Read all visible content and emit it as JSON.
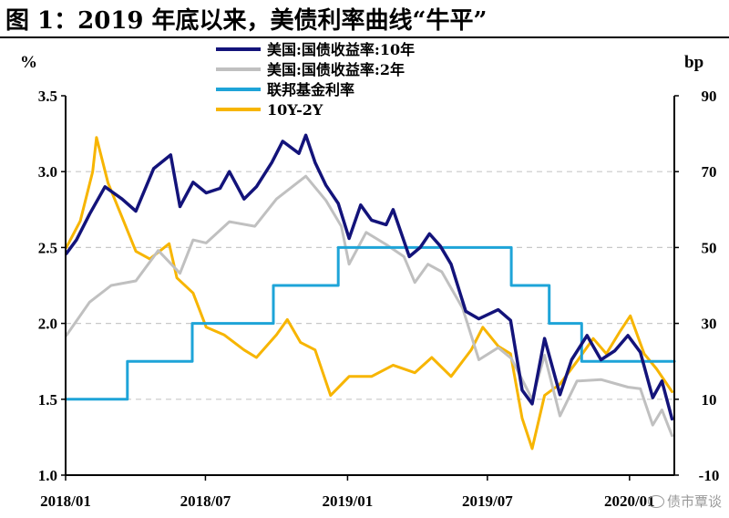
{
  "title": "图 1：2019 年底以来，美债利率曲线“牛平”",
  "watermark": "债市覃谈",
  "chart_data": {
    "type": "line",
    "left_axis": {
      "unit": "%",
      "ylim": [
        1.0,
        3.5
      ],
      "ticks": [
        "1.0",
        "1.5",
        "2.0",
        "2.5",
        "3.0",
        "3.5"
      ]
    },
    "right_axis": {
      "unit": "bp",
      "ylim": [
        -10,
        90
      ],
      "ticks": [
        "-10",
        "10",
        "30",
        "50",
        "70",
        "90"
      ]
    },
    "x_ticks": [
      "2018/01",
      "2018/07",
      "2019/01",
      "2019/07",
      "2020/01"
    ],
    "x_range": [
      "2018-01-01",
      "2020-02-28"
    ],
    "grid": "horizontal-dashed",
    "legend_position": "top-left",
    "series": [
      {
        "name": "美国:国债收益率:10年",
        "axis": "left",
        "color": "#13137a",
        "step": false,
        "points": [
          [
            "2018-01-02",
            2.46
          ],
          [
            "2018-01-15",
            2.55
          ],
          [
            "2018-02-01",
            2.72
          ],
          [
            "2018-02-21",
            2.9
          ],
          [
            "2018-03-15",
            2.82
          ],
          [
            "2018-04-02",
            2.74
          ],
          [
            "2018-04-25",
            3.02
          ],
          [
            "2018-05-17",
            3.11
          ],
          [
            "2018-05-29",
            2.77
          ],
          [
            "2018-06-15",
            2.93
          ],
          [
            "2018-07-02",
            2.86
          ],
          [
            "2018-07-20",
            2.89
          ],
          [
            "2018-08-01",
            3.0
          ],
          [
            "2018-08-20",
            2.82
          ],
          [
            "2018-09-05",
            2.9
          ],
          [
            "2018-09-25",
            3.06
          ],
          [
            "2018-10-09",
            3.2
          ],
          [
            "2018-10-30",
            3.12
          ],
          [
            "2018-11-08",
            3.24
          ],
          [
            "2018-11-20",
            3.06
          ],
          [
            "2018-12-04",
            2.91
          ],
          [
            "2018-12-20",
            2.79
          ],
          [
            "2019-01-03",
            2.56
          ],
          [
            "2019-01-18",
            2.78
          ],
          [
            "2019-02-01",
            2.68
          ],
          [
            "2019-02-20",
            2.65
          ],
          [
            "2019-03-01",
            2.75
          ],
          [
            "2019-03-22",
            2.44
          ],
          [
            "2019-04-05",
            2.5
          ],
          [
            "2019-04-17",
            2.59
          ],
          [
            "2019-05-01",
            2.51
          ],
          [
            "2019-05-15",
            2.39
          ],
          [
            "2019-06-03",
            2.08
          ],
          [
            "2019-06-20",
            2.03
          ],
          [
            "2019-07-15",
            2.09
          ],
          [
            "2019-07-31",
            2.02
          ],
          [
            "2019-08-15",
            1.56
          ],
          [
            "2019-08-28",
            1.47
          ],
          [
            "2019-09-13",
            1.9
          ],
          [
            "2019-10-03",
            1.53
          ],
          [
            "2019-10-18",
            1.76
          ],
          [
            "2019-11-07",
            1.92
          ],
          [
            "2019-11-25",
            1.76
          ],
          [
            "2019-12-13",
            1.82
          ],
          [
            "2019-12-30",
            1.92
          ],
          [
            "2020-01-15",
            1.81
          ],
          [
            "2020-01-31",
            1.51
          ],
          [
            "2020-02-12",
            1.62
          ],
          [
            "2020-02-25",
            1.37
          ]
        ]
      },
      {
        "name": "美国:国债收益率:2年",
        "axis": "left",
        "color": "#c0c0c0",
        "step": false,
        "points": [
          [
            "2018-01-02",
            1.92
          ],
          [
            "2018-02-01",
            2.14
          ],
          [
            "2018-03-01",
            2.25
          ],
          [
            "2018-04-02",
            2.28
          ],
          [
            "2018-05-01",
            2.48
          ],
          [
            "2018-05-29",
            2.33
          ],
          [
            "2018-06-15",
            2.55
          ],
          [
            "2018-07-02",
            2.53
          ],
          [
            "2018-08-01",
            2.67
          ],
          [
            "2018-09-03",
            2.64
          ],
          [
            "2018-10-01",
            2.82
          ],
          [
            "2018-11-08",
            2.97
          ],
          [
            "2018-12-04",
            2.81
          ],
          [
            "2018-12-24",
            2.64
          ],
          [
            "2019-01-03",
            2.39
          ],
          [
            "2019-01-25",
            2.6
          ],
          [
            "2019-02-20",
            2.52
          ],
          [
            "2019-03-15",
            2.44
          ],
          [
            "2019-03-29",
            2.27
          ],
          [
            "2019-04-15",
            2.39
          ],
          [
            "2019-05-03",
            2.34
          ],
          [
            "2019-05-30",
            2.1
          ],
          [
            "2019-06-20",
            1.76
          ],
          [
            "2019-07-15",
            1.84
          ],
          [
            "2019-08-01",
            1.77
          ],
          [
            "2019-08-28",
            1.5
          ],
          [
            "2019-09-13",
            1.79
          ],
          [
            "2019-10-03",
            1.39
          ],
          [
            "2019-10-25",
            1.62
          ],
          [
            "2019-11-25",
            1.63
          ],
          [
            "2019-12-30",
            1.58
          ],
          [
            "2020-01-15",
            1.57
          ],
          [
            "2020-01-31",
            1.33
          ],
          [
            "2020-02-12",
            1.43
          ],
          [
            "2020-02-25",
            1.26
          ]
        ]
      },
      {
        "name": "联邦基金利率",
        "axis": "left",
        "color": "#1ea4d8",
        "step": true,
        "points": [
          [
            "2018-01-01",
            1.5
          ],
          [
            "2018-03-22",
            1.75
          ],
          [
            "2018-06-14",
            2.0
          ],
          [
            "2018-09-27",
            2.25
          ],
          [
            "2018-12-20",
            2.5
          ],
          [
            "2019-08-01",
            2.25
          ],
          [
            "2019-09-19",
            2.0
          ],
          [
            "2019-10-31",
            1.75
          ],
          [
            "2020-02-28",
            1.75
          ]
        ]
      },
      {
        "name": "10Y-2Y",
        "axis": "right",
        "color": "#f7b500",
        "step": false,
        "points": [
          [
            "2018-01-02",
            50
          ],
          [
            "2018-01-20",
            57
          ],
          [
            "2018-02-05",
            70
          ],
          [
            "2018-02-10",
            79
          ],
          [
            "2018-02-25",
            67
          ],
          [
            "2018-03-15",
            58
          ],
          [
            "2018-04-02",
            49
          ],
          [
            "2018-04-20",
            47
          ],
          [
            "2018-05-15",
            51
          ],
          [
            "2018-05-25",
            42
          ],
          [
            "2018-06-15",
            38
          ],
          [
            "2018-07-02",
            29
          ],
          [
            "2018-07-25",
            27
          ],
          [
            "2018-08-20",
            23
          ],
          [
            "2018-09-05",
            21
          ],
          [
            "2018-10-01",
            27
          ],
          [
            "2018-10-15",
            31
          ],
          [
            "2018-11-01",
            25
          ],
          [
            "2018-11-20",
            23
          ],
          [
            "2018-12-10",
            11
          ],
          [
            "2019-01-03",
            16
          ],
          [
            "2019-02-01",
            16
          ],
          [
            "2019-03-01",
            19
          ],
          [
            "2019-03-29",
            17
          ],
          [
            "2019-04-20",
            21
          ],
          [
            "2019-05-15",
            16
          ],
          [
            "2019-06-10",
            23
          ],
          [
            "2019-06-25",
            29
          ],
          [
            "2019-07-15",
            24
          ],
          [
            "2019-07-31",
            22
          ],
          [
            "2019-08-15",
            5
          ],
          [
            "2019-08-28",
            -3
          ],
          [
            "2019-09-13",
            11
          ],
          [
            "2019-10-03",
            14
          ],
          [
            "2019-10-25",
            20
          ],
          [
            "2019-11-15",
            26
          ],
          [
            "2019-12-02",
            22
          ],
          [
            "2019-12-20",
            28
          ],
          [
            "2020-01-02",
            32
          ],
          [
            "2020-01-20",
            22
          ],
          [
            "2020-02-05",
            18
          ],
          [
            "2020-02-25",
            12
          ]
        ]
      }
    ]
  }
}
